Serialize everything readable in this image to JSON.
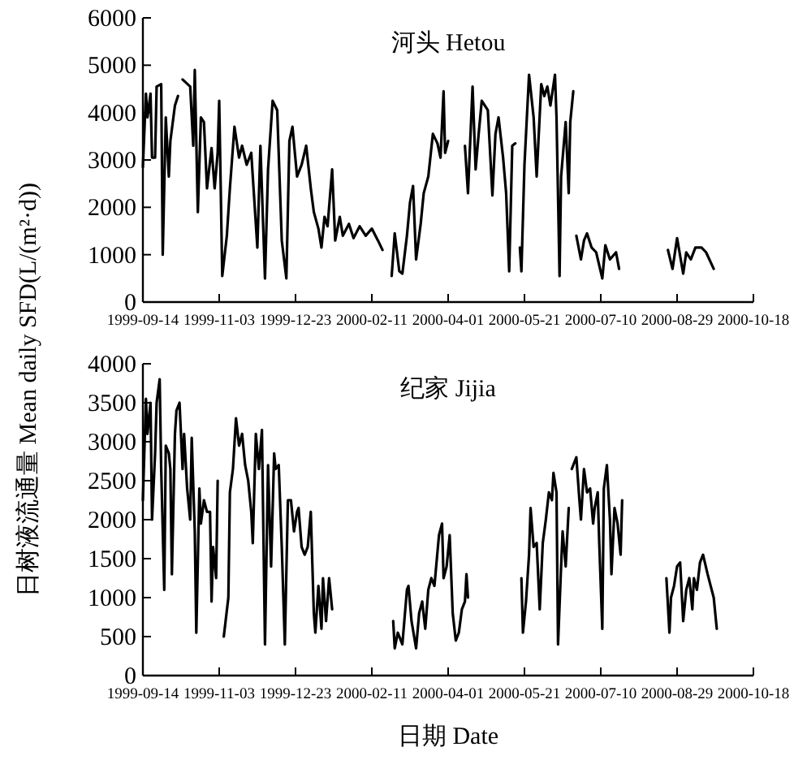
{
  "chart_data": [
    {
      "type": "line",
      "title": "河头 Hetou",
      "ylabel": "日树液流通量 Mean daily SFD(L/(m²·d))",
      "xlim": [
        "1999-09-14",
        "2000-10-18"
      ],
      "xticks": [
        "1999-09-14",
        "1999-11-03",
        "1999-12-23",
        "2000-02-11",
        "2000-04-01",
        "2000-05-21",
        "2000-07-10",
        "2000-08-29",
        "2000-10-18"
      ],
      "ylim": [
        0,
        6000
      ],
      "yticks": [
        0,
        1000,
        2000,
        3000,
        4000,
        5000,
        6000
      ],
      "grid": false,
      "series": [
        {
          "color": "#000000",
          "x": [
            "1999-09-14",
            "1999-09-16",
            "1999-09-17",
            "1999-09-19",
            "1999-09-20",
            "1999-09-22",
            "1999-09-23",
            "1999-09-26",
            "1999-09-27",
            "1999-09-29",
            "1999-10-01",
            "1999-10-02",
            "1999-10-05",
            "1999-10-07"
          ],
          "values": [
            2850,
            4400,
            3900,
            4400,
            3050,
            3050,
            4550,
            4600,
            1000,
            3900,
            2650,
            3400,
            4150,
            4350
          ]
        },
        {
          "color": "#000000",
          "x": [
            "1999-10-10",
            "1999-10-15",
            "1999-10-17",
            "1999-10-18",
            "1999-10-20",
            "1999-10-22",
            "1999-10-24",
            "1999-10-26",
            "1999-10-29",
            "1999-10-31",
            "1999-11-02",
            "1999-11-03",
            "1999-11-05",
            "1999-11-08",
            "1999-11-10",
            "1999-11-13",
            "1999-11-16",
            "1999-11-18",
            "1999-11-21",
            "1999-11-24",
            "1999-11-28",
            "1999-11-30",
            "1999-12-03",
            "1999-12-05",
            "1999-12-08",
            "1999-12-11",
            "1999-12-14",
            "1999-12-17",
            "1999-12-19",
            "1999-12-21",
            "1999-12-24",
            "1999-12-27",
            "1999-12-30",
            "2000-01-02",
            "2000-01-04",
            "2000-01-07",
            "2000-01-09",
            "2000-01-11",
            "2000-01-13",
            "2000-01-16",
            "2000-01-18",
            "2000-01-21",
            "2000-01-23",
            "2000-01-27",
            "2000-01-30",
            "2000-02-03",
            "2000-02-07",
            "2000-02-11",
            "2000-02-15",
            "2000-02-18"
          ],
          "values": [
            4700,
            4550,
            3300,
            4900,
            1900,
            3900,
            3800,
            2400,
            3250,
            2400,
            3150,
            4250,
            550,
            1400,
            2400,
            3700,
            3050,
            3300,
            2900,
            3150,
            1150,
            3300,
            500,
            2800,
            4250,
            4050,
            1300,
            500,
            3400,
            3700,
            2650,
            2900,
            3300,
            2400,
            1900,
            1550,
            1150,
            1800,
            1600,
            2800,
            1300,
            1800,
            1400,
            1650,
            1350,
            1600,
            1400,
            1550,
            1300,
            1100
          ]
        },
        {
          "color": "#000000",
          "x": [
            "2000-02-24",
            "2000-02-26",
            "2000-02-29",
            "2000-03-02",
            "2000-03-05",
            "2000-03-07",
            "2000-03-09",
            "2000-03-11",
            "2000-03-14",
            "2000-03-16",
            "2000-03-19",
            "2000-03-22",
            "2000-03-25",
            "2000-03-27",
            "2000-03-29",
            "2000-03-30",
            "2000-04-01"
          ],
          "values": [
            550,
            1450,
            650,
            600,
            1400,
            2100,
            2450,
            900,
            1650,
            2300,
            2650,
            3550,
            3350,
            3050,
            4450,
            3150,
            3400
          ]
        },
        {
          "color": "#000000",
          "x": [
            "2000-04-12",
            "2000-04-14",
            "2000-04-17",
            "2000-04-19",
            "2000-04-21",
            "2000-04-23",
            "2000-04-27",
            "2000-04-30",
            "2000-05-02",
            "2000-05-04",
            "2000-05-07",
            "2000-05-09",
            "2000-05-11",
            "2000-05-13",
            "2000-05-15"
          ],
          "values": [
            3300,
            2300,
            4550,
            2800,
            3550,
            4250,
            4050,
            2250,
            3550,
            3900,
            3050,
            2300,
            650,
            3300,
            3350
          ]
        },
        {
          "color": "#000000",
          "x": [
            "2000-05-18",
            "2000-05-19",
            "2000-05-21",
            "2000-05-24",
            "2000-05-27",
            "2000-05-29",
            "2000-06-01",
            "2000-06-03",
            "2000-06-05",
            "2000-06-07",
            "2000-06-10",
            "2000-06-11",
            "2000-06-13",
            "2000-06-14",
            "2000-06-17",
            "2000-06-19",
            "2000-06-20",
            "2000-06-22"
          ],
          "values": [
            1150,
            650,
            2900,
            4800,
            3900,
            2650,
            4600,
            4350,
            4550,
            4150,
            4800,
            3900,
            550,
            2650,
            3800,
            2300,
            3800,
            4450
          ]
        },
        {
          "color": "#000000",
          "x": [
            "2000-06-24",
            "2000-06-27",
            "2000-06-29",
            "2000-07-01",
            "2000-07-04",
            "2000-07-07",
            "2000-07-11",
            "2000-07-13",
            "2000-07-16",
            "2000-07-20",
            "2000-07-22"
          ],
          "values": [
            1400,
            900,
            1300,
            1450,
            1150,
            1050,
            500,
            1200,
            900,
            1050,
            700
          ]
        },
        {
          "color": "#000000",
          "x": [
            "2000-08-23",
            "2000-08-26",
            "2000-08-29",
            "2000-09-02",
            "2000-09-04",
            "2000-09-07",
            "2000-09-10",
            "2000-09-14",
            "2000-09-17",
            "2000-09-22"
          ],
          "values": [
            1100,
            700,
            1350,
            600,
            1050,
            900,
            1150,
            1150,
            1050,
            700
          ]
        }
      ]
    },
    {
      "type": "line",
      "title": "纪家 Jijia",
      "xlabel": "日期 Date",
      "xlim": [
        "1999-09-14",
        "2000-10-18"
      ],
      "xticks": [
        "1999-09-14",
        "1999-11-03",
        "1999-12-23",
        "2000-02-11",
        "2000-04-01",
        "2000-05-21",
        "2000-07-10",
        "2000-08-29",
        "2000-10-18"
      ],
      "ylim": [
        0,
        4000
      ],
      "yticks": [
        0,
        500,
        1000,
        1500,
        2000,
        2500,
        3000,
        3500,
        4000
      ],
      "grid": false,
      "series": [
        {
          "color": "#000000",
          "x": [
            "1999-09-14",
            "1999-09-16",
            "1999-09-17",
            "1999-09-19",
            "1999-09-20",
            "1999-09-22",
            "1999-09-23",
            "1999-09-25",
            "1999-09-26",
            "1999-09-28",
            "1999-09-29",
            "1999-10-01",
            "1999-10-02",
            "1999-10-03",
            "1999-10-05",
            "1999-10-06",
            "1999-10-08",
            "1999-10-10",
            "1999-10-11",
            "1999-10-13",
            "1999-10-15",
            "1999-10-16",
            "1999-10-18",
            "1999-10-19",
            "1999-10-21",
            "1999-10-22",
            "1999-10-24",
            "1999-10-26",
            "1999-10-28",
            "1999-10-29",
            "1999-10-30",
            "1999-11-01",
            "1999-11-02"
          ],
          "values": [
            2250,
            3550,
            3100,
            3500,
            2000,
            2850,
            3500,
            3800,
            2650,
            1100,
            2950,
            2850,
            2650,
            1300,
            3100,
            3400,
            3500,
            2650,
            3100,
            2400,
            2000,
            3050,
            1850,
            550,
            2400,
            1950,
            2250,
            2100,
            2100,
            950,
            1650,
            1250,
            2500
          ]
        },
        {
          "color": "#000000",
          "x": [
            "1999-11-06",
            "1999-11-09",
            "1999-11-10",
            "1999-11-12",
            "1999-11-14",
            "1999-11-16",
            "1999-11-18",
            "1999-11-20",
            "1999-11-22",
            "1999-11-24",
            "1999-11-25",
            "1999-11-27",
            "1999-11-29",
            "1999-12-01",
            "1999-12-03",
            "1999-12-05",
            "1999-12-07",
            "1999-12-09",
            "1999-12-10",
            "1999-12-12",
            "1999-12-14",
            "1999-12-16",
            "1999-12-18",
            "1999-12-20",
            "1999-12-22",
            "1999-12-24",
            "1999-12-25",
            "1999-12-27",
            "1999-12-29",
            "1999-12-31",
            "2000-01-02",
            "2000-01-04",
            "2000-01-05",
            "2000-01-07",
            "2000-01-09",
            "2000-01-10",
            "2000-01-12",
            "2000-01-14",
            "2000-01-16"
          ],
          "values": [
            500,
            1000,
            2350,
            2650,
            3300,
            2950,
            3100,
            2700,
            2500,
            2100,
            1700,
            3100,
            2650,
            3150,
            400,
            2700,
            1400,
            2850,
            2650,
            2700,
            1650,
            400,
            2250,
            2250,
            1850,
            2100,
            2150,
            1650,
            1550,
            1650,
            2100,
            800,
            550,
            1150,
            600,
            1250,
            700,
            1250,
            850
          ]
        },
        {
          "color": "#000000",
          "x": [
            "2000-02-25",
            "2000-02-26",
            "2000-02-28",
            "2000-03-02",
            "2000-03-05",
            "2000-03-06",
            "2000-03-08",
            "2000-03-11",
            "2000-03-13",
            "2000-03-15",
            "2000-03-17",
            "2000-03-19",
            "2000-03-21",
            "2000-03-23",
            "2000-03-26",
            "2000-03-28",
            "2000-03-29",
            "2000-03-31",
            "2000-04-02",
            "2000-04-04",
            "2000-04-06",
            "2000-04-08",
            "2000-04-10",
            "2000-04-12",
            "2000-04-13",
            "2000-04-14"
          ],
          "values": [
            700,
            350,
            550,
            400,
            1100,
            1150,
            700,
            350,
            800,
            950,
            600,
            1100,
            1250,
            1150,
            1800,
            1950,
            1250,
            1400,
            1800,
            800,
            450,
            550,
            850,
            950,
            1300,
            1000
          ]
        },
        {
          "color": "#000000",
          "x": [
            "2000-05-19",
            "2000-05-20",
            "2000-05-22",
            "2000-05-24",
            "2000-05-25",
            "2000-05-27",
            "2000-05-29",
            "2000-05-31",
            "2000-06-02",
            "2000-06-04",
            "2000-06-06",
            "2000-06-08",
            "2000-06-09",
            "2000-06-11",
            "2000-06-12",
            "2000-06-14",
            "2000-06-15",
            "2000-06-17",
            "2000-06-19"
          ],
          "values": [
            1250,
            550,
            950,
            1550,
            2150,
            1650,
            1700,
            850,
            1700,
            2000,
            2350,
            2250,
            2600,
            2350,
            400,
            1400,
            1850,
            1400,
            2150
          ]
        },
        {
          "color": "#000000",
          "x": [
            "2000-06-21",
            "2000-06-24",
            "2000-06-26",
            "2000-06-27",
            "2000-06-29",
            "2000-07-01",
            "2000-07-03",
            "2000-07-05",
            "2000-07-06",
            "2000-07-08",
            "2000-07-09",
            "2000-07-11",
            "2000-07-12",
            "2000-07-14",
            "2000-07-16",
            "2000-07-17",
            "2000-07-19",
            "2000-07-21",
            "2000-07-23",
            "2000-07-24"
          ],
          "values": [
            2650,
            2800,
            2250,
            2000,
            2650,
            2350,
            2400,
            1950,
            2150,
            2350,
            1700,
            600,
            2400,
            2700,
            2000,
            1300,
            2150,
            1950,
            1550,
            2250
          ]
        },
        {
          "color": "#000000",
          "x": [
            "2000-08-22",
            "2000-08-24",
            "2000-08-25",
            "2000-08-27",
            "2000-08-29",
            "2000-08-31",
            "2000-09-02",
            "2000-09-04",
            "2000-09-06",
            "2000-09-08",
            "2000-09-09",
            "2000-09-11",
            "2000-09-13",
            "2000-09-15",
            "2000-09-18",
            "2000-09-20",
            "2000-09-22",
            "2000-09-24"
          ],
          "values": [
            1250,
            550,
            1000,
            1150,
            1400,
            1450,
            700,
            1100,
            1250,
            850,
            1250,
            1100,
            1450,
            1550,
            1300,
            1150,
            1000,
            600
          ]
        }
      ]
    }
  ]
}
